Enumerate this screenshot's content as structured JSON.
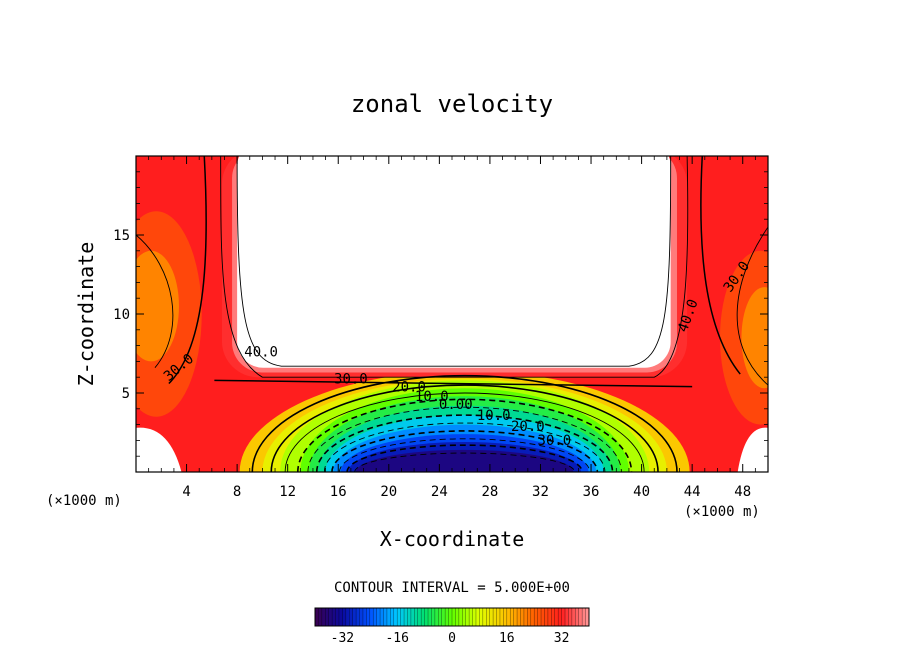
{
  "chart_data": {
    "type": "contour",
    "title": "zonal velocity",
    "xlabel": "X-coordinate",
    "ylabel": "Z-coordinate",
    "x_unit": "(×1000 m)",
    "y_unit": "(×1000 m)",
    "xlim": [
      0,
      50
    ],
    "ylim": [
      0,
      20
    ],
    "x_ticks": [
      4,
      8,
      12,
      16,
      20,
      24,
      28,
      32,
      36,
      40,
      44,
      48
    ],
    "y_ticks": [
      5,
      10,
      15
    ],
    "contour_interval_text": "CONTOUR INTERVAL = 5.000E+00",
    "contour_levels": {
      "min": -35,
      "max": 40,
      "step": 5,
      "labelled": [
        "-30.0",
        "-20.0",
        "-10.0",
        "0.00",
        "10.0",
        "20.0",
        "30.0",
        "40.0"
      ]
    },
    "colorbar": {
      "min": -40,
      "max": 40,
      "ticks": [
        -32,
        -16,
        0,
        16,
        32
      ],
      "tick_labels": [
        "-32",
        "-16",
        "0",
        "16",
        "32"
      ]
    },
    "field_notes": {
      "max_region": "values above 40 (unshaded) over x 8-42, z 6.5-20",
      "min_region": "values below -35 near x 16-36 at the bottom boundary"
    }
  },
  "colors": {
    "background": "#ffffff",
    "axes": "#000000",
    "colormap": [
      "#3a0050",
      "#0a0aa0",
      "#0050ff",
      "#00c8ff",
      "#00e070",
      "#60ff00",
      "#e0ff00",
      "#ffc000",
      "#ff6000",
      "#ff1e1e",
      "#ff9a9a"
    ]
  }
}
